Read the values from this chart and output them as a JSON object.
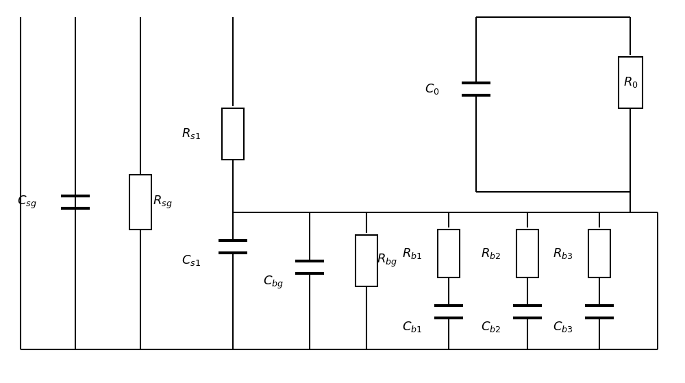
{
  "figsize": [
    10.0,
    5.59
  ],
  "dpi": 100,
  "bg_color": "#ffffff",
  "line_color": "#000000",
  "lw": 1.5,
  "fs": 13
}
